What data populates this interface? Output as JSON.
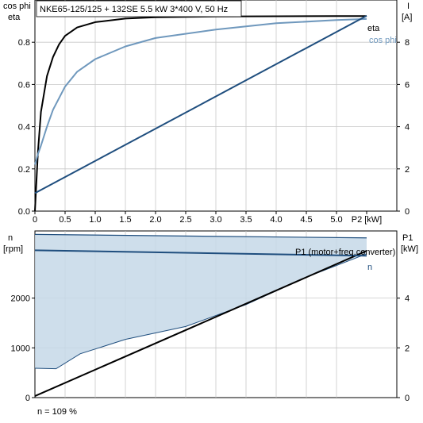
{
  "chart_data": [
    {
      "type": "line",
      "title": "NKE65-125/125 + 132SE   5.5 kW   3*400 V, 50 Hz",
      "xlabel": "P2 [kW]",
      "xlim": [
        0,
        6.0
      ],
      "x_ticks": [
        "0",
        "0.5",
        "1.0",
        "1.5",
        "2.0",
        "2.5",
        "3.0",
        "3.5",
        "4.0",
        "4.5",
        "5.0",
        "P2 [kW]"
      ],
      "ylabel_left": [
        "cos phi",
        "eta"
      ],
      "ylim_left": [
        0,
        1.0
      ],
      "y_ticks_left": [
        "0.0",
        "0.2",
        "0.4",
        "0.6",
        "0.8"
      ],
      "ylabel_right": [
        "I",
        "[A]"
      ],
      "ylim_right": [
        0,
        10
      ],
      "y_ticks_right": [
        "0",
        "2",
        "4",
        "6",
        "8"
      ],
      "series": [
        {
          "name": "eta",
          "axis": "left",
          "color": "#000000",
          "x": [
            0.0,
            0.05,
            0.1,
            0.2,
            0.3,
            0.4,
            0.5,
            0.7,
            1.0,
            1.5,
            2.0,
            3.0,
            4.0,
            5.0,
            5.5
          ],
          "y": [
            0.0,
            0.28,
            0.47,
            0.64,
            0.73,
            0.79,
            0.83,
            0.87,
            0.895,
            0.912,
            0.918,
            0.922,
            0.923,
            0.924,
            0.924
          ]
        },
        {
          "name": "cos phi",
          "axis": "left",
          "color": "#6f98bd",
          "x": [
            0.0,
            0.05,
            0.1,
            0.2,
            0.3,
            0.5,
            0.7,
            1.0,
            1.5,
            2.0,
            3.0,
            4.0,
            5.0,
            5.5
          ],
          "y": [
            0.22,
            0.27,
            0.31,
            0.4,
            0.48,
            0.59,
            0.66,
            0.72,
            0.78,
            0.82,
            0.86,
            0.89,
            0.905,
            0.91
          ]
        },
        {
          "name": "I",
          "axis": "right",
          "color": "#1f4e7e",
          "x": [
            0.0,
            5.5
          ],
          "y": [
            0.85,
            9.25
          ]
        }
      ]
    },
    {
      "type": "area",
      "xlim": [
        0,
        6.0
      ],
      "ylabel_left": [
        "n",
        "[rpm]"
      ],
      "ylim_left": [
        0,
        3350
      ],
      "y_ticks_left": [
        "0",
        "1000",
        "2000"
      ],
      "ylabel_right": [
        "P1",
        "[kW]"
      ],
      "ylim_right": [
        0,
        6.7
      ],
      "y_ticks_right": [
        "0",
        "2",
        "4"
      ],
      "annotation": "n = 109 %",
      "band": {
        "color": "#c6d8e8",
        "x_upper": [
          0.0,
          5.5
        ],
        "n_upper": [
          3280,
          3210
        ],
        "x_lower": [
          0.0,
          0.35,
          0.75,
          1.5,
          2.5,
          3.5,
          4.5,
          5.5
        ],
        "n_lower": [
          590,
          580,
          880,
          1170,
          1430,
          1870,
          2420,
          2890
        ]
      },
      "series": [
        {
          "name": "P1 (motor+freq.converter)",
          "axis": "right",
          "color": "#000000",
          "x": [
            0.0,
            5.5
          ],
          "y": [
            0.06,
            5.9
          ]
        },
        {
          "name": "n",
          "axis": "left",
          "color": "#1f4e7e",
          "x": [
            0.0,
            5.5
          ],
          "y": [
            2960,
            2850
          ]
        }
      ]
    }
  ]
}
